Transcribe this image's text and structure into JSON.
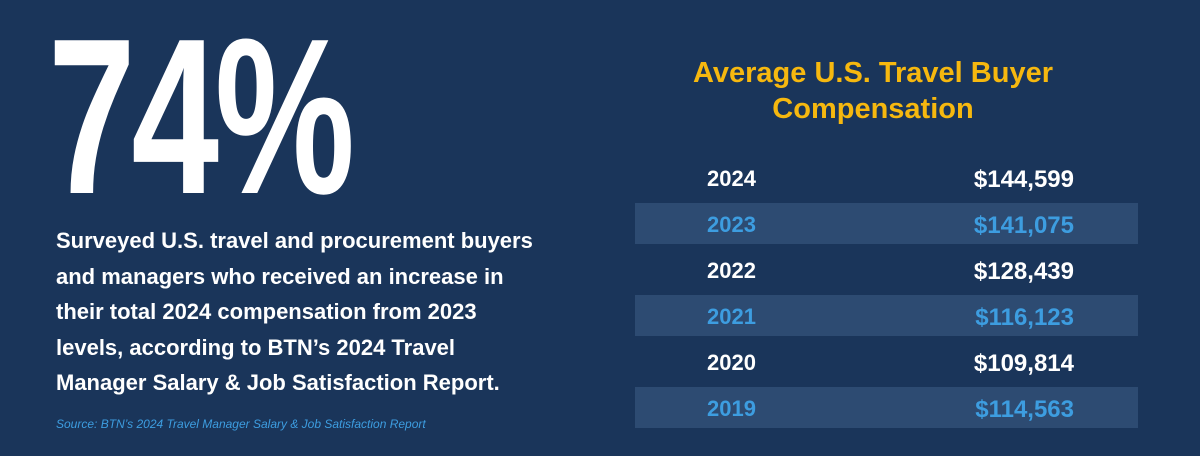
{
  "headline": {
    "figure": "74%",
    "description": [
      "Surveyed U.S. travel and procurement buyers",
      "and managers who received an increase in",
      "their total 2024 compensation from 2023",
      "levels, according to BTN’s 2024 Travel",
      "Manager Salary & Job Satisfaction Report."
    ],
    "source": "Source: BTN’s 2024 Travel Manager Salary & Job Satisfaction Report"
  },
  "table": {
    "title": [
      "Average U.S. Travel Buyer",
      "Compensation"
    ],
    "rows": [
      [
        "2024",
        "$144,599"
      ],
      [
        "2023",
        "$141,075"
      ],
      [
        "2022",
        "$128,439"
      ],
      [
        "2021",
        "$116,123"
      ],
      [
        "2020",
        "$109,814"
      ],
      [
        "2019",
        "$114,563"
      ]
    ]
  }
}
